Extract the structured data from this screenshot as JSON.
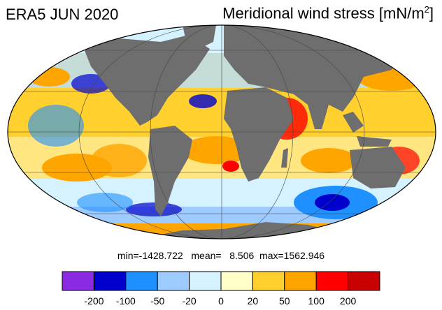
{
  "title": {
    "left": "ERA5 JUN 2020",
    "right_main": "Meridional wind stress [mN/m",
    "right_sup": "2",
    "right_end": "]"
  },
  "stats": {
    "text": "min=-1428.722   mean=   8.506  max=1562.946"
  },
  "colorbar": {
    "colors": [
      "#8a2be2",
      "#0000cd",
      "#1e90ff",
      "#9ecbff",
      "#d4f2ff",
      "#ffffc8",
      "#ffd02e",
      "#ffa500",
      "#ff0000",
      "#c80000"
    ],
    "labels": [
      "-200",
      "-100",
      "-50",
      "-20",
      "0",
      "20",
      "50",
      "100",
      "200"
    ]
  },
  "map": {
    "land_color": "#6e6e6e",
    "ocean_base": "#ffd700"
  }
}
